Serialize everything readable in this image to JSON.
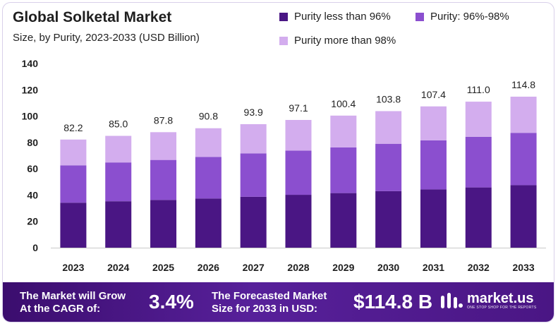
{
  "header": {
    "title": "Global Solketal Market",
    "subtitle": "Size, by Purity, 2023-2033 (USD Billion)"
  },
  "colors": {
    "bottom": "#4a1684",
    "middle": "#8b4fcf",
    "top": "#d3adee"
  },
  "chart_data": {
    "type": "bar",
    "stacked": true,
    "title": "Global Solketal Market",
    "subtitle": "Size, by Purity, 2023-2033 (USD Billion)",
    "xlabel": "",
    "ylabel": "",
    "ylim": [
      0,
      140
    ],
    "yticks": [
      0,
      20,
      40,
      60,
      80,
      100,
      120,
      140
    ],
    "grid": false,
    "legend_position": "top-right",
    "categories": [
      "2023",
      "2024",
      "2025",
      "2026",
      "2027",
      "2028",
      "2029",
      "2030",
      "2031",
      "2032",
      "2033"
    ],
    "series": [
      {
        "name": "Purity less than 96%",
        "values": [
          34.2,
          35.3,
          36.3,
          37.4,
          38.7,
          40.2,
          41.5,
          43.0,
          44.3,
          45.8,
          47.5
        ]
      },
      {
        "name": "Purity: 96%-98%",
        "values": [
          28.4,
          29.5,
          30.4,
          31.6,
          33.0,
          33.6,
          34.7,
          36.0,
          37.3,
          38.5,
          39.8
        ]
      },
      {
        "name": "Purity more than 98%",
        "values": [
          19.6,
          20.2,
          21.1,
          21.8,
          22.2,
          23.3,
          24.2,
          24.8,
          25.8,
          26.7,
          27.5
        ]
      }
    ],
    "totals": [
      "82.2",
      "85.0",
      "87.8",
      "90.8",
      "93.9",
      "97.1",
      "100.4",
      "103.8",
      "107.4",
      "111.0",
      "114.8"
    ]
  },
  "banner": {
    "cagr_text_line1": "The Market will Grow",
    "cagr_text_line2": "At the CAGR of:",
    "cagr_value": "3.4%",
    "forecast_text_line1": "The Forecasted Market",
    "forecast_text_line2": "Size for 2033 in USD:",
    "forecast_value": "$114.8 B",
    "logo_name": "market.us",
    "logo_tagline": "ONE STOP SHOP FOR THE REPORTS"
  }
}
